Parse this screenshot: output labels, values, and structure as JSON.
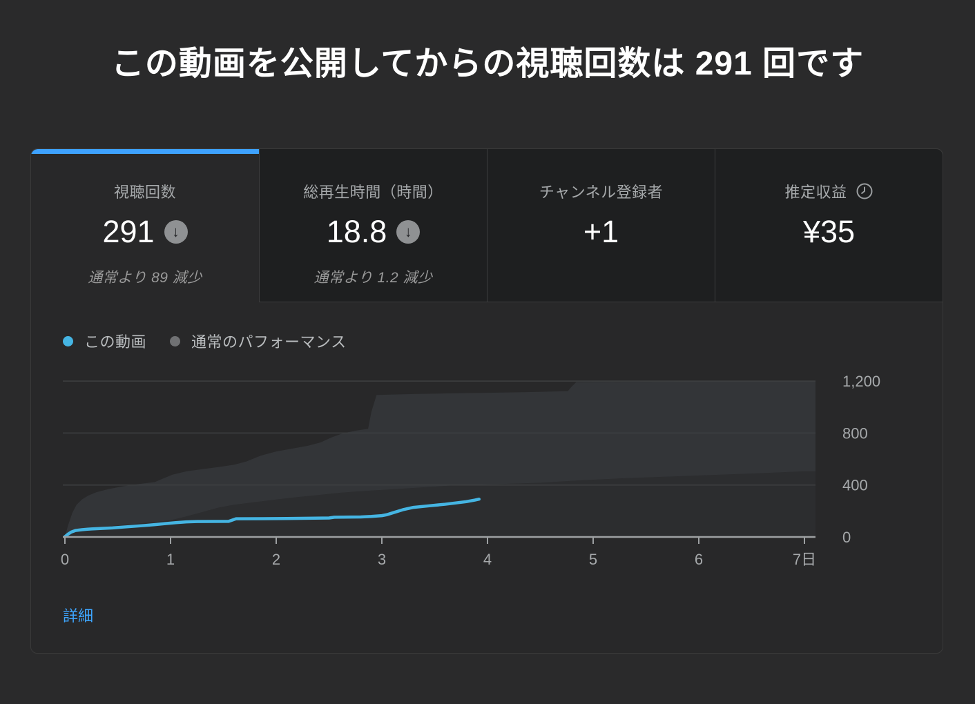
{
  "title": "この動画を公開してからの視聴回数は 291 回です",
  "colors": {
    "accent_blue": "#3ea2ff",
    "link_blue": "#3ea6ff",
    "line_blue": "#45b5e3",
    "legend_gray": "#707173",
    "band": "#333538",
    "band_under": "#2c2d2f",
    "gridline": "#3e4042",
    "axis": "#9da0a2",
    "axis_text": "#a6a9ab"
  },
  "tabs": [
    {
      "label": "視聴回数",
      "value": "291",
      "delta_icon": "arrow-down-circle",
      "subtext": "通常より 89 減少",
      "active": true
    },
    {
      "label": "総再生時間（時間）",
      "value": "18.8",
      "delta_icon": "arrow-down-circle",
      "subtext": "通常より 1.2 減少",
      "active": false
    },
    {
      "label": "チャンネル登録者",
      "value": "+1",
      "active": false
    },
    {
      "label": "推定収益",
      "label_icon": "clock",
      "value": "¥35",
      "active": false
    }
  ],
  "delta_arrow_glyph": "↓",
  "legend": [
    {
      "label": "この動画",
      "color": "#45b5e3"
    },
    {
      "label": "通常のパフォーマンス",
      "color": "#707173"
    }
  ],
  "details_link": "詳細",
  "chart_data": {
    "type": "area",
    "title": "公開後 7 日間の視聴回数の推移",
    "xlabel": "日",
    "ylabel": "視聴回数",
    "xlim": [
      0,
      7
    ],
    "ylim": [
      0,
      1290
    ],
    "grid": true,
    "legend_position": "top-left",
    "x_ticks": [
      {
        "value": 0,
        "label": "0"
      },
      {
        "value": 1,
        "label": "1"
      },
      {
        "value": 2,
        "label": "2"
      },
      {
        "value": 3,
        "label": "3"
      },
      {
        "value": 4,
        "label": "4"
      },
      {
        "value": 5,
        "label": "5"
      },
      {
        "value": 6,
        "label": "6"
      },
      {
        "value": 7,
        "label": "7日"
      }
    ],
    "y_ticks": [
      {
        "value": 0,
        "label": "0"
      },
      {
        "value": 400,
        "label": "400"
      },
      {
        "value": 800,
        "label": "800"
      },
      {
        "value": 1200,
        "label": "1,200"
      }
    ],
    "series": [
      {
        "name": "この動画",
        "role": "line",
        "color": "#45b5e3",
        "points": [
          [
            0,
            2
          ],
          [
            0.03,
            22
          ],
          [
            0.06,
            38
          ],
          [
            0.1,
            50
          ],
          [
            0.16,
            56
          ],
          [
            0.25,
            62
          ],
          [
            0.35,
            66
          ],
          [
            0.45,
            70
          ],
          [
            0.55,
            76
          ],
          [
            0.65,
            82
          ],
          [
            0.75,
            88
          ],
          [
            0.85,
            95
          ],
          [
            0.95,
            103
          ],
          [
            1.05,
            110
          ],
          [
            1.15,
            116
          ],
          [
            1.25,
            119
          ],
          [
            1.55,
            120
          ],
          [
            1.62,
            140
          ],
          [
            2.1,
            142
          ],
          [
            2.5,
            146
          ],
          [
            2.55,
            152
          ],
          [
            2.8,
            154
          ],
          [
            2.9,
            158
          ],
          [
            3.0,
            164
          ],
          [
            3.05,
            172
          ],
          [
            3.1,
            185
          ],
          [
            3.2,
            210
          ],
          [
            3.3,
            228
          ],
          [
            3.45,
            240
          ],
          [
            3.6,
            252
          ],
          [
            3.7,
            262
          ],
          [
            3.8,
            272
          ],
          [
            3.88,
            284
          ],
          [
            3.92,
            291
          ]
        ]
      },
      {
        "name": "通常のパフォーマンス（下限）",
        "role": "band_lower",
        "points": [
          [
            0,
            0
          ],
          [
            0.05,
            28
          ],
          [
            0.12,
            48
          ],
          [
            0.25,
            65
          ],
          [
            0.45,
            85
          ],
          [
            0.65,
            100
          ],
          [
            0.85,
            115
          ],
          [
            1.0,
            128
          ],
          [
            1.1,
            148
          ],
          [
            1.25,
            180
          ],
          [
            1.45,
            225
          ],
          [
            1.6,
            248
          ],
          [
            1.8,
            268
          ],
          [
            2.0,
            288
          ],
          [
            2.2,
            307
          ],
          [
            2.4,
            323
          ],
          [
            2.6,
            340
          ],
          [
            2.8,
            352
          ],
          [
            3.0,
            362
          ],
          [
            3.35,
            380
          ],
          [
            3.7,
            398
          ],
          [
            4.1,
            407
          ],
          [
            4.5,
            417
          ],
          [
            4.9,
            437
          ],
          [
            5.3,
            452
          ],
          [
            5.7,
            464
          ],
          [
            6.1,
            476
          ],
          [
            6.5,
            488
          ],
          [
            7,
            505
          ]
        ]
      },
      {
        "name": "通常のパフォーマンス（上限）",
        "role": "band_upper",
        "points": [
          [
            0,
            0
          ],
          [
            0.03,
            90
          ],
          [
            0.07,
            185
          ],
          [
            0.11,
            248
          ],
          [
            0.16,
            288
          ],
          [
            0.22,
            318
          ],
          [
            0.3,
            345
          ],
          [
            0.42,
            370
          ],
          [
            0.55,
            390
          ],
          [
            0.7,
            408
          ],
          [
            0.85,
            422
          ],
          [
            0.93,
            450
          ],
          [
            1.02,
            480
          ],
          [
            1.15,
            505
          ],
          [
            1.3,
            522
          ],
          [
            1.45,
            538
          ],
          [
            1.6,
            556
          ],
          [
            1.72,
            582
          ],
          [
            1.85,
            625
          ],
          [
            2.0,
            658
          ],
          [
            2.15,
            680
          ],
          [
            2.3,
            702
          ],
          [
            2.42,
            728
          ],
          [
            2.52,
            765
          ],
          [
            2.62,
            795
          ],
          [
            2.75,
            818
          ],
          [
            2.87,
            833
          ],
          [
            2.9,
            960
          ],
          [
            2.95,
            1093
          ],
          [
            3.3,
            1100
          ],
          [
            3.7,
            1106
          ],
          [
            4.1,
            1111
          ],
          [
            4.45,
            1116
          ],
          [
            4.76,
            1122
          ],
          [
            4.8,
            1160
          ],
          [
            4.84,
            1192
          ],
          [
            5.3,
            1194
          ],
          [
            6.0,
            1197
          ],
          [
            7,
            1200
          ]
        ]
      }
    ]
  }
}
